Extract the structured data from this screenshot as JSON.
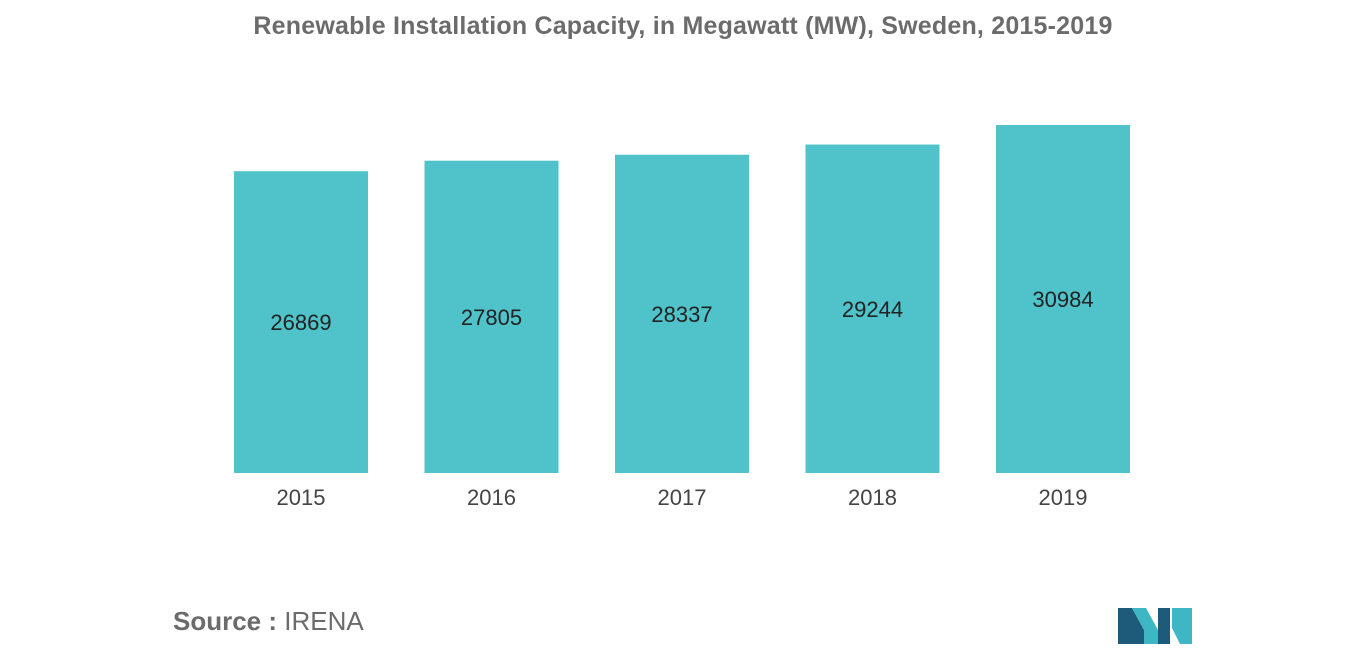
{
  "chart_data": {
    "type": "bar",
    "title": "Renewable Installation Capacity, in Megawatt (MW), Sweden, 2015-2019",
    "categories": [
      "2015",
      "2016",
      "2017",
      "2018",
      "2019"
    ],
    "values": [
      26869,
      27805,
      28337,
      29244,
      30984
    ],
    "data_labels": [
      "26869",
      "27805",
      "28337",
      "29244",
      "30984"
    ],
    "xlabel": "",
    "ylabel": "",
    "ylim": [
      0,
      30984
    ],
    "grid": false,
    "legend": "none",
    "bar_color": "#4fc3c9"
  },
  "footer": {
    "source_label": "Source :",
    "source_value": "IRENA"
  },
  "colors": {
    "title": "#6b6b6b",
    "labels": "#333333",
    "logo_dark": "#1e5a7a",
    "logo_light": "#3fb6c4"
  }
}
